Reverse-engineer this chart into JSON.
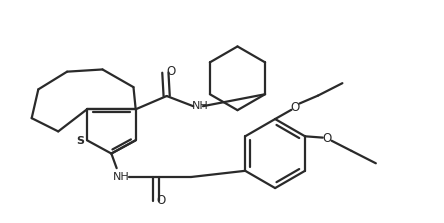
{
  "bg_color": "#ffffff",
  "line_color": "#2a2a2a",
  "line_width": 1.6,
  "figsize": [
    4.44,
    2.23
  ],
  "dpi": 100,
  "xlim": [
    0,
    10
  ],
  "ylim": [
    0,
    5
  ]
}
